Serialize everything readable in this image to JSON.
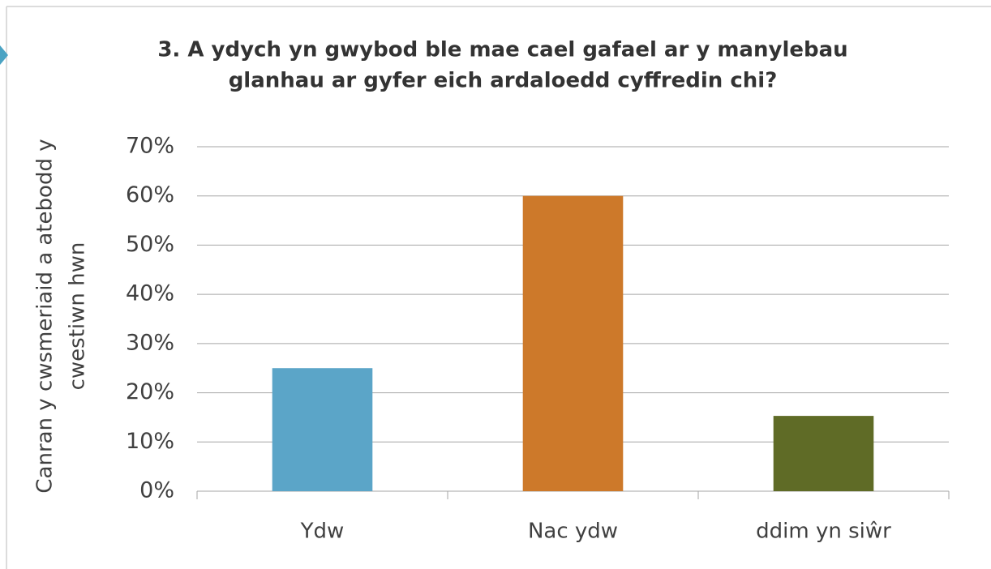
{
  "chart_data": {
    "type": "bar",
    "title": [
      "3. A ydych yn gwybod ble mae cael gafael ar y manylebau",
      "glanhau ar gyfer eich ardaloedd cyffredin chi?"
    ],
    "y_label": [
      "Canran y cwsmeriaid a atebodd y",
      "cwestiwn hwn"
    ],
    "categories": [
      "Ydw",
      "Nac ydw",
      "ddim yn siŵr"
    ],
    "values": [
      25,
      60,
      15.3
    ],
    "colors": [
      "#5ba5c8",
      "#cd792a",
      "#5f6b26"
    ],
    "ylim": [
      0,
      70
    ],
    "yticks": [
      {
        "value": 0,
        "label": "0%"
      },
      {
        "value": 10,
        "label": "10%"
      },
      {
        "value": 20,
        "label": "20%"
      },
      {
        "value": 30,
        "label": "30%"
      },
      {
        "value": 40,
        "label": "40%"
      },
      {
        "value": 50,
        "label": "50%"
      },
      {
        "value": 60,
        "label": "60%"
      },
      {
        "value": 70,
        "label": "70%"
      }
    ],
    "grid": true
  }
}
